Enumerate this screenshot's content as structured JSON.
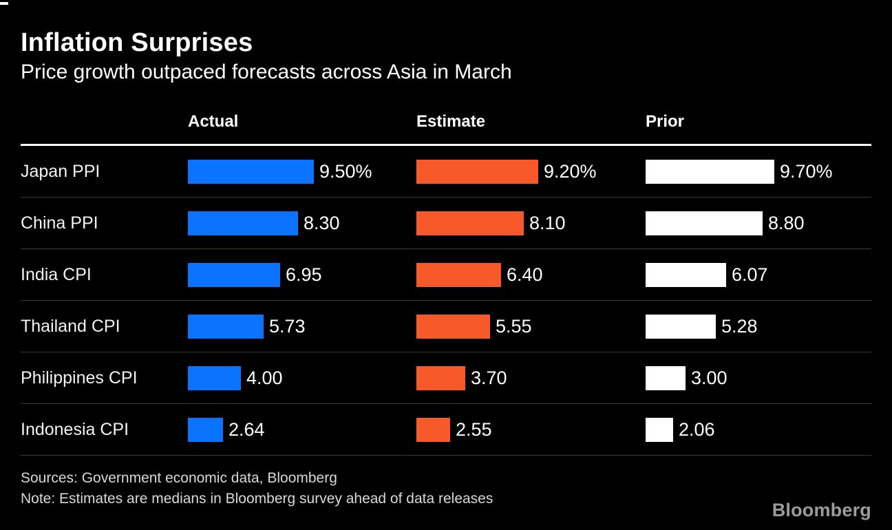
{
  "header": {},
  "chart_data": {
    "type": "bar",
    "orientation": "horizontal",
    "title": "Inflation Surprises",
    "subtitle": "Price growth outpaced forecasts across Asia in March",
    "columns": [
      {
        "name": "Actual",
        "color": "#0A73FF"
      },
      {
        "name": "Estimate",
        "color": "#F8592A"
      },
      {
        "name": "Prior",
        "color": "#FFFFFF"
      }
    ],
    "categories": [
      "Japan PPI",
      "China PPI",
      "India CPI",
      "Thailand CPI",
      "Philippines CPI",
      "Indonesia CPI"
    ],
    "rows": [
      {
        "label": "Japan PPI",
        "values": [
          9.5,
          9.2,
          9.7
        ],
        "display": [
          "9.50%",
          "9.20%",
          "9.70%"
        ]
      },
      {
        "label": "China PPI",
        "values": [
          8.3,
          8.1,
          8.8
        ],
        "display": [
          "8.30",
          "8.10",
          "8.80"
        ]
      },
      {
        "label": "India CPI",
        "values": [
          6.95,
          6.4,
          6.07
        ],
        "display": [
          "6.95",
          "6.40",
          "6.07"
        ]
      },
      {
        "label": "Thailand CPI",
        "values": [
          5.73,
          5.55,
          5.28
        ],
        "display": [
          "5.73",
          "5.55",
          "5.28"
        ]
      },
      {
        "label": "Philippines CPI",
        "values": [
          4.0,
          3.7,
          3.0
        ],
        "display": [
          "4.00",
          "3.70",
          "3.00"
        ]
      },
      {
        "label": "Indonesia CPI",
        "values": [
          2.64,
          2.55,
          2.06
        ],
        "display": [
          "2.64",
          "2.55",
          "2.06"
        ]
      }
    ],
    "xlim": [
      0,
      9.7
    ],
    "grid": false,
    "legend_position": "column-headers"
  },
  "footer": {
    "sources": "Sources: Government economic data, Bloomberg",
    "note": "Note: Estimates are medians in Bloomberg survey ahead of data releases",
    "logo": "Bloomberg"
  }
}
